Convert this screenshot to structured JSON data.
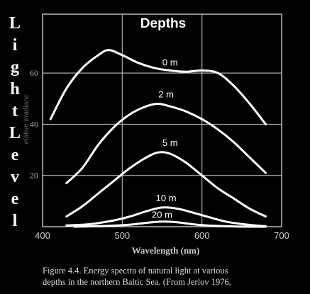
{
  "figure": {
    "left_label": "Light Level",
    "caption_lines": [
      "Figure 4.4. Energy spectra of natural light at various",
      "depths in the northern Baltic Sea. (From Jerlov 1976,"
    ],
    "ylabel_faint": "elative irradianc"
  },
  "chart_data": {
    "type": "line",
    "title": "Depths",
    "xlabel": "Wavelength (nm)",
    "ylabel": "",
    "xlim": [
      400,
      700
    ],
    "ylim": [
      0,
      83
    ],
    "xticks": [
      400,
      500,
      600,
      700
    ],
    "yticks": [
      20,
      40,
      60
    ],
    "grid": true,
    "series": [
      {
        "name": "0 m",
        "x": [
          410,
          430,
          450,
          470,
          483,
          500,
          520,
          540,
          560,
          580,
          600,
          620,
          640,
          660,
          680
        ],
        "y": [
          42,
          54,
          62,
          67,
          69,
          67,
          64,
          62,
          61,
          60.5,
          61,
          60,
          55,
          48,
          40
        ]
      },
      {
        "name": "2 m",
        "x": [
          430,
          450,
          470,
          490,
          510,
          530,
          545,
          560,
          580,
          600,
          620,
          640,
          660,
          680
        ],
        "y": [
          17,
          23,
          32,
          39,
          44,
          47,
          48,
          47,
          45,
          42,
          38,
          33,
          27,
          21
        ]
      },
      {
        "name": "5 m",
        "x": [
          430,
          450,
          470,
          490,
          510,
          530,
          545,
          560,
          580,
          600,
          620,
          640,
          660,
          680
        ],
        "y": [
          4,
          8,
          13,
          18,
          23,
          27,
          29,
          28.5,
          25,
          20,
          15,
          11,
          7,
          4
        ]
      },
      {
        "name": "10 m",
        "x": [
          430,
          460,
          490,
          510,
          530,
          550,
          570,
          600,
          630,
          660,
          680
        ],
        "y": [
          0.5,
          1,
          2.5,
          4,
          6,
          7.5,
          7,
          4.5,
          2,
          0.7,
          0.2
        ]
      },
      {
        "name": "20 m",
        "x": [
          440,
          480,
          510,
          530,
          550,
          570,
          600,
          640,
          680
        ],
        "y": [
          0,
          0.3,
          0.8,
          1.5,
          2,
          1.7,
          0.6,
          0.1,
          0
        ]
      }
    ]
  }
}
